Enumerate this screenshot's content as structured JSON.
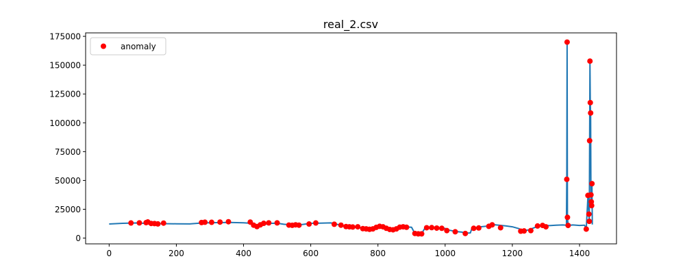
{
  "chart_data": {
    "type": "line",
    "title": "real_2.csv",
    "xlabel": "",
    "ylabel": "",
    "xlim": [
      -70,
      1510
    ],
    "ylim": [
      -5000,
      178000
    ],
    "xticks": [
      0,
      200,
      400,
      600,
      800,
      1000,
      1200,
      1400
    ],
    "yticks": [
      0,
      25000,
      50000,
      75000,
      100000,
      125000,
      150000,
      175000
    ],
    "grid": false,
    "legend": {
      "placement": "top-left"
    },
    "colors": {
      "line": "#1f77b4",
      "anomaly": "#ff0000"
    },
    "series": [
      {
        "kind": "line",
        "points": [
          [
            0,
            12200
          ],
          [
            40,
            12800
          ],
          [
            80,
            13100
          ],
          [
            120,
            12600
          ],
          [
            160,
            12500
          ],
          [
            200,
            12400
          ],
          [
            240,
            12300
          ],
          [
            280,
            13200
          ],
          [
            320,
            13400
          ],
          [
            360,
            13600
          ],
          [
            400,
            13300
          ],
          [
            420,
            12900
          ],
          [
            430,
            11000
          ],
          [
            440,
            10000
          ],
          [
            460,
            11800
          ],
          [
            480,
            12800
          ],
          [
            500,
            12900
          ],
          [
            520,
            12000
          ],
          [
            540,
            11500
          ],
          [
            560,
            11200
          ],
          [
            580,
            12000
          ],
          [
            600,
            12800
          ],
          [
            620,
            12900
          ],
          [
            660,
            13200
          ],
          [
            680,
            11800
          ],
          [
            700,
            10500
          ],
          [
            720,
            9500
          ],
          [
            740,
            9200
          ],
          [
            760,
            8500
          ],
          [
            780,
            8200
          ],
          [
            800,
            9600
          ],
          [
            820,
            8500
          ],
          [
            840,
            7800
          ],
          [
            860,
            8800
          ],
          [
            880,
            9800
          ],
          [
            900,
            9400
          ],
          [
            910,
            4000
          ],
          [
            930,
            3800
          ],
          [
            940,
            8800
          ],
          [
            960,
            9200
          ],
          [
            980,
            8600
          ],
          [
            1000,
            8400
          ],
          [
            1010,
            7000
          ],
          [
            1030,
            5800
          ],
          [
            1050,
            5200
          ],
          [
            1060,
            4200
          ],
          [
            1075,
            4500
          ],
          [
            1080,
            8800
          ],
          [
            1100,
            9600
          ],
          [
            1120,
            10200
          ],
          [
            1140,
            11800
          ],
          [
            1160,
            11200
          ],
          [
            1180,
            10600
          ],
          [
            1200,
            9800
          ],
          [
            1220,
            8200
          ],
          [
            1230,
            6200
          ],
          [
            1250,
            7200
          ],
          [
            1270,
            9600
          ],
          [
            1290,
            11200
          ],
          [
            1310,
            10800
          ],
          [
            1330,
            11200
          ],
          [
            1350,
            11400
          ],
          [
            1361,
            11200
          ],
          [
            1362,
            51000
          ],
          [
            1363,
            170000
          ],
          [
            1364,
            18000
          ],
          [
            1366,
            11000
          ],
          [
            1380,
            11400
          ],
          [
            1400,
            11000
          ],
          [
            1415,
            11200
          ],
          [
            1420,
            8000
          ],
          [
            1425,
            36500
          ],
          [
            1428,
            20500
          ],
          [
            1429,
            14000
          ],
          [
            1430,
            84000
          ],
          [
            1431,
            153000
          ],
          [
            1432,
            117000
          ],
          [
            1433,
            108000
          ],
          [
            1434,
            36500
          ],
          [
            1435,
            31000
          ],
          [
            1436,
            28000
          ],
          [
            1437,
            47000
          ],
          [
            1438,
            11800
          ]
        ]
      },
      {
        "kind": "scatter",
        "name": "anomaly",
        "points": [
          [
            65,
            13100
          ],
          [
            90,
            13200
          ],
          [
            110,
            13400
          ],
          [
            115,
            14000
          ],
          [
            125,
            12700
          ],
          [
            135,
            12600
          ],
          [
            145,
            12300
          ],
          [
            162,
            13000
          ],
          [
            275,
            13500
          ],
          [
            285,
            13800
          ],
          [
            305,
            13700
          ],
          [
            330,
            13900
          ],
          [
            355,
            14200
          ],
          [
            420,
            13900
          ],
          [
            430,
            11200
          ],
          [
            440,
            10000
          ],
          [
            450,
            11500
          ],
          [
            460,
            12800
          ],
          [
            475,
            13200
          ],
          [
            500,
            13200
          ],
          [
            535,
            11300
          ],
          [
            545,
            11100
          ],
          [
            555,
            11500
          ],
          [
            565,
            11200
          ],
          [
            595,
            12200
          ],
          [
            615,
            13100
          ],
          [
            670,
            12000
          ],
          [
            690,
            11200
          ],
          [
            705,
            10000
          ],
          [
            715,
            9800
          ],
          [
            725,
            9600
          ],
          [
            740,
            9800
          ],
          [
            755,
            8200
          ],
          [
            765,
            8000
          ],
          [
            775,
            7600
          ],
          [
            785,
            8000
          ],
          [
            795,
            9300
          ],
          [
            805,
            10200
          ],
          [
            815,
            9800
          ],
          [
            825,
            8500
          ],
          [
            835,
            7500
          ],
          [
            845,
            7200
          ],
          [
            855,
            8000
          ],
          [
            865,
            9500
          ],
          [
            875,
            9800
          ],
          [
            885,
            9400
          ],
          [
            910,
            4000
          ],
          [
            920,
            3700
          ],
          [
            930,
            3700
          ],
          [
            945,
            9000
          ],
          [
            960,
            9100
          ],
          [
            975,
            8700
          ],
          [
            990,
            8500
          ],
          [
            1005,
            6500
          ],
          [
            1030,
            5500
          ],
          [
            1060,
            4000
          ],
          [
            1085,
            8500
          ],
          [
            1100,
            8800
          ],
          [
            1130,
            10200
          ],
          [
            1140,
            11500
          ],
          [
            1165,
            9000
          ],
          [
            1225,
            6000
          ],
          [
            1235,
            6200
          ],
          [
            1255,
            6500
          ],
          [
            1275,
            10500
          ],
          [
            1290,
            11000
          ],
          [
            1300,
            9800
          ],
          [
            1362,
            51000
          ],
          [
            1363,
            170000
          ],
          [
            1364,
            18000
          ],
          [
            1366,
            11000
          ],
          [
            1420,
            7800
          ],
          [
            1425,
            37000
          ],
          [
            1428,
            20800
          ],
          [
            1429,
            14500
          ],
          [
            1430,
            84500
          ],
          [
            1431,
            153500
          ],
          [
            1432,
            117500
          ],
          [
            1433,
            108500
          ],
          [
            1434,
            37500
          ],
          [
            1435,
            31500
          ],
          [
            1436,
            28200
          ],
          [
            1437,
            47200
          ]
        ]
      }
    ]
  }
}
